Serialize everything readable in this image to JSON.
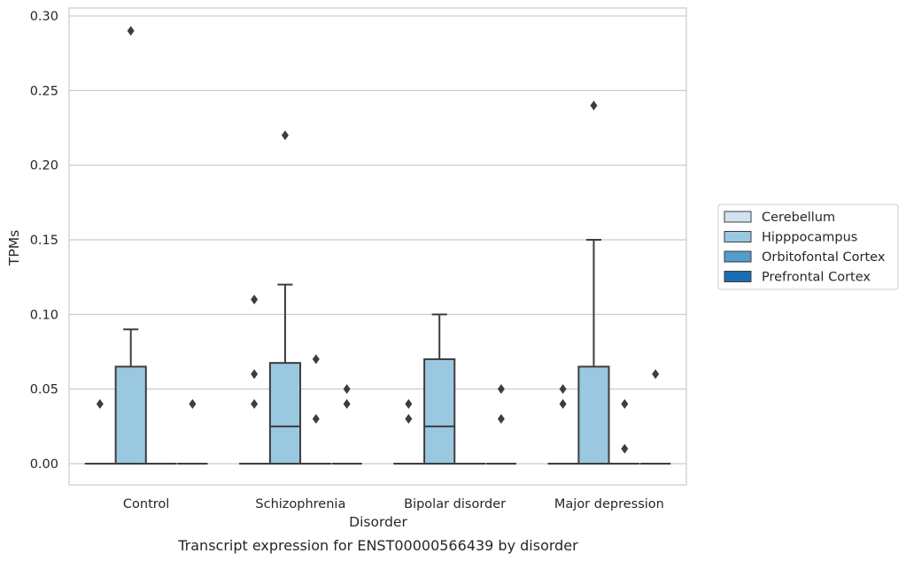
{
  "chart_data": {
    "type": "box",
    "caption": "Transcript expression for ENST00000566439 by disorder",
    "xlabel": "Disorder",
    "ylabel": "TPMs",
    "ylim": [
      -0.014,
      0.303
    ],
    "yticks": [
      0.0,
      0.05,
      0.1,
      0.15,
      0.2,
      0.25,
      0.3
    ],
    "ytick_labels": [
      "0.00",
      "0.05",
      "0.10",
      "0.15",
      "0.20",
      "0.25",
      "0.30"
    ],
    "grid": "horizontal",
    "legend_position": "center-right-outside",
    "categories": [
      "Control",
      "Schizophrenia",
      "Bipolar disorder",
      "Major depression"
    ],
    "series": [
      {
        "name": "Cerebellum",
        "color": "#d1e2f2",
        "boxes": [
          {
            "q1": 0,
            "median": 0,
            "q3": 0,
            "whisker_low": 0,
            "whisker_high": 0,
            "outliers": [
              0.04
            ]
          },
          {
            "q1": 0,
            "median": 0,
            "q3": 0,
            "whisker_low": 0,
            "whisker_high": 0,
            "outliers": [
              0.04,
              0.06,
              0.11
            ]
          },
          {
            "q1": 0,
            "median": 0,
            "q3": 0,
            "whisker_low": 0,
            "whisker_high": 0,
            "outliers": [
              0.03,
              0.04
            ]
          },
          {
            "q1": 0,
            "median": 0,
            "q3": 0,
            "whisker_low": 0,
            "whisker_high": 0,
            "outliers": [
              0.04,
              0.05
            ]
          }
        ]
      },
      {
        "name": "Hipppocampus",
        "color": "#9ac8e0",
        "boxes": [
          {
            "q1": 0,
            "median": 0,
            "q3": 0.065,
            "whisker_low": 0,
            "whisker_high": 0.09,
            "outliers": [
              0.29
            ]
          },
          {
            "q1": 0,
            "median": 0.025,
            "q3": 0.0675,
            "whisker_low": 0,
            "whisker_high": 0.12,
            "outliers": [
              0.22
            ]
          },
          {
            "q1": 0,
            "median": 0.025,
            "q3": 0.07,
            "whisker_low": 0,
            "whisker_high": 0.1,
            "outliers": []
          },
          {
            "q1": 0,
            "median": 0,
            "q3": 0.065,
            "whisker_low": 0,
            "whisker_high": 0.15,
            "outliers": [
              0.24
            ]
          }
        ]
      },
      {
        "name": "Orbitofontal Cortex",
        "color": "#529dcc",
        "boxes": [
          {
            "q1": 0,
            "median": 0,
            "q3": 0,
            "whisker_low": 0,
            "whisker_high": 0,
            "outliers": []
          },
          {
            "q1": 0,
            "median": 0,
            "q3": 0,
            "whisker_low": 0,
            "whisker_high": 0,
            "outliers": [
              0.03,
              0.07
            ]
          },
          {
            "q1": 0,
            "median": 0,
            "q3": 0,
            "whisker_low": 0,
            "whisker_high": 0,
            "outliers": []
          },
          {
            "q1": 0,
            "median": 0,
            "q3": 0,
            "whisker_low": 0,
            "whisker_high": 0,
            "outliers": [
              0.01,
              0.04
            ]
          }
        ]
      },
      {
        "name": "Prefrontal Cortex",
        "color": "#1c6cb1",
        "boxes": [
          {
            "q1": 0,
            "median": 0,
            "q3": 0,
            "whisker_low": 0,
            "whisker_high": 0,
            "outliers": [
              0.04
            ]
          },
          {
            "q1": 0,
            "median": 0,
            "q3": 0,
            "whisker_low": 0,
            "whisker_high": 0,
            "outliers": [
              0.04,
              0.05
            ]
          },
          {
            "q1": 0,
            "median": 0,
            "q3": 0,
            "whisker_low": 0,
            "whisker_high": 0,
            "outliers": [
              0.03,
              0.05
            ]
          },
          {
            "q1": 0,
            "median": 0,
            "q3": 0,
            "whisker_low": 0,
            "whisker_high": 0,
            "outliers": [
              0.06
            ]
          }
        ]
      }
    ]
  }
}
